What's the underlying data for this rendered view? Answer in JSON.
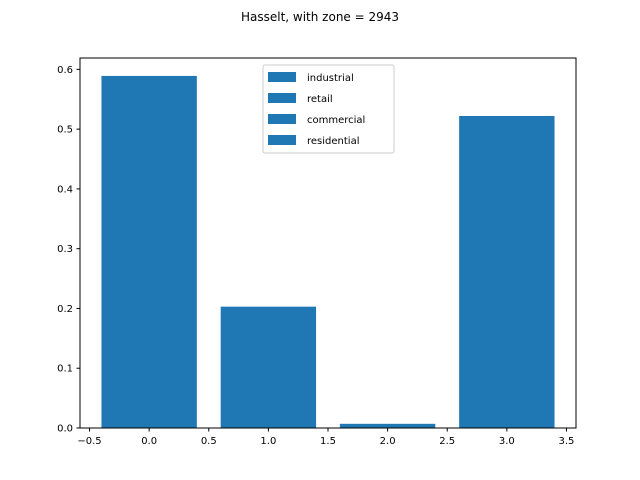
{
  "chart_data": {
    "type": "bar",
    "title": "Hasselt, with zone = 2943",
    "xlabel": "",
    "ylabel": "",
    "x": [
      0,
      1,
      2,
      3
    ],
    "values": [
      0.589,
      0.203,
      0.007,
      0.522
    ],
    "bar_width": 0.8,
    "xlim": [
      -0.58,
      3.58
    ],
    "ylim": [
      0,
      0.619
    ],
    "x_ticks": [
      -0.5,
      0.0,
      0.5,
      1.0,
      1.5,
      2.0,
      2.5,
      3.0,
      3.5
    ],
    "x_tick_labels": [
      "−0.5",
      "0.0",
      "0.5",
      "1.0",
      "1.5",
      "2.0",
      "2.5",
      "3.0",
      "3.5"
    ],
    "y_ticks": [
      0.0,
      0.1,
      0.2,
      0.3,
      0.4,
      0.5,
      0.6
    ],
    "y_tick_labels": [
      "0.0",
      "0.1",
      "0.2",
      "0.3",
      "0.4",
      "0.5",
      "0.6"
    ],
    "grid": false,
    "legend": {
      "placement": "top-center",
      "entries": [
        "industrial",
        "retail",
        "commercial",
        "residential"
      ]
    },
    "bar_color": "#1f77b4"
  }
}
